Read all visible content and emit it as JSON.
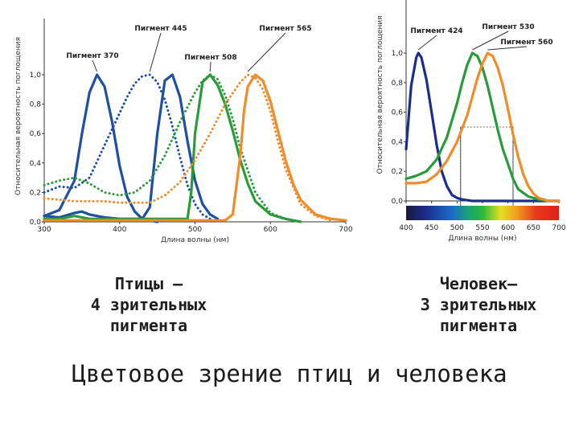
{
  "title": "Цветовое зрение птиц  и человека",
  "caption_left": [
    "Птицы –",
    "4 зрительных",
    "пигмента"
  ],
  "caption_right": [
    "Человек–",
    "3 зрительных",
    "пигмента"
  ],
  "chart_data": [
    {
      "type": "line",
      "ylabel": "Относительная вероятность поглощения",
      "xlabel": "Длина волны (нм)",
      "xlim": [
        300,
        700
      ],
      "ylim": [
        0,
        1.0
      ],
      "xticks": [
        300,
        400,
        500,
        600,
        700
      ],
      "yticks": [
        "0,0",
        "0,2",
        "0,4",
        "0,6",
        "0,8",
        "1,0"
      ],
      "colors": {
        "blue": "#1f4fa3",
        "navy": "#1a2f8a",
        "green": "#2a9a3a",
        "orange": "#f08c2a"
      },
      "series": [
        {
          "name": "Пигмент 370",
          "color": "blue",
          "style": "solid",
          "x": [
            300,
            320,
            340,
            350,
            360,
            370,
            380,
            390,
            400,
            410,
            420,
            430,
            440,
            450
          ],
          "y": [
            0.04,
            0.08,
            0.28,
            0.6,
            0.88,
            1.0,
            0.92,
            0.68,
            0.38,
            0.17,
            0.07,
            0.02,
            0.01,
            0.0
          ]
        },
        {
          "name": "Пигмент 445",
          "color": "blue",
          "style": "dotted",
          "x": [
            300,
            320,
            340,
            360,
            380,
            400,
            410,
            420,
            430,
            440,
            450,
            460,
            470,
            480,
            490,
            500,
            510,
            520
          ],
          "y": [
            0.2,
            0.24,
            0.23,
            0.3,
            0.52,
            0.74,
            0.85,
            0.94,
            0.99,
            1.0,
            0.95,
            0.83,
            0.65,
            0.44,
            0.25,
            0.12,
            0.05,
            0.02
          ]
        },
        {
          "name": "Пигмент 445",
          "color": "blue",
          "style": "solid",
          "x": [
            300,
            320,
            340,
            350,
            360,
            380,
            400,
            420,
            430,
            440,
            450,
            460,
            470,
            480,
            490,
            500,
            510,
            520,
            530
          ],
          "y": [
            0.04,
            0.03,
            0.06,
            0.07,
            0.05,
            0.03,
            0.02,
            0.02,
            0.02,
            0.1,
            0.6,
            0.96,
            1.0,
            0.85,
            0.55,
            0.28,
            0.12,
            0.05,
            0.02
          ]
        },
        {
          "name": "Пигмент 508",
          "color": "green",
          "style": "dotted",
          "x": [
            300,
            320,
            340,
            360,
            380,
            400,
            420,
            440,
            460,
            480,
            500,
            510,
            520,
            530,
            540,
            550,
            560,
            580,
            600,
            620
          ],
          "y": [
            0.25,
            0.28,
            0.3,
            0.26,
            0.2,
            0.18,
            0.2,
            0.28,
            0.45,
            0.68,
            0.88,
            0.96,
            1.0,
            0.97,
            0.86,
            0.7,
            0.5,
            0.2,
            0.06,
            0.02
          ]
        },
        {
          "name": "Пигмент 508",
          "color": "green",
          "style": "solid",
          "x": [
            300,
            320,
            340,
            360,
            380,
            400,
            420,
            440,
            460,
            480,
            490,
            495,
            500,
            510,
            520,
            530,
            540,
            550,
            560,
            570,
            580,
            600,
            620,
            640
          ],
          "y": [
            0.02,
            0.02,
            0.04,
            0.02,
            0.02,
            0.02,
            0.02,
            0.02,
            0.02,
            0.02,
            0.02,
            0.2,
            0.6,
            0.95,
            1.0,
            0.93,
            0.8,
            0.62,
            0.42,
            0.26,
            0.14,
            0.05,
            0.02,
            0.0
          ]
        },
        {
          "name": "Пигмент 565",
          "color": "orange",
          "style": "dotted",
          "x": [
            300,
            340,
            380,
            400,
            420,
            440,
            460,
            480,
            500,
            520,
            540,
            560,
            570,
            580,
            590,
            600,
            610,
            620,
            640,
            660,
            680
          ],
          "y": [
            0.16,
            0.14,
            0.14,
            0.13,
            0.13,
            0.13,
            0.18,
            0.27,
            0.42,
            0.6,
            0.8,
            0.95,
            1.0,
            0.98,
            0.9,
            0.75,
            0.55,
            0.36,
            0.12,
            0.04,
            0.01
          ]
        },
        {
          "name": "Пигмент 565",
          "color": "orange",
          "style": "solid",
          "x": [
            300,
            400,
            500,
            540,
            550,
            560,
            565,
            570,
            580,
            590,
            600,
            610,
            620,
            630,
            640,
            660,
            680,
            700
          ],
          "y": [
            0.01,
            0.01,
            0.01,
            0.01,
            0.05,
            0.45,
            0.75,
            0.92,
            1.0,
            0.96,
            0.82,
            0.62,
            0.42,
            0.26,
            0.15,
            0.05,
            0.02,
            0.01
          ]
        }
      ],
      "labels": [
        "Пигмент 370",
        "Пигмент 445",
        "Пигмент 508",
        "Пигмент 565"
      ]
    },
    {
      "type": "line",
      "ylabel": "Относительная вероятность поглощения",
      "xlabel": "Длина волны (нм)",
      "xlim": [
        400,
        700
      ],
      "ylim": [
        0,
        1.0
      ],
      "xticks": [
        400,
        450,
        500,
        550,
        600,
        650,
        700
      ],
      "yticks": [
        "0,0",
        "0,2",
        "0,4",
        "0,6",
        "0,8",
        "1,0"
      ],
      "spectrum_bar": true,
      "highlight_box": {
        "x": [
          507,
          610
        ],
        "y": [
          0.0,
          0.5
        ]
      },
      "series": [
        {
          "name": "Пигмент 424",
          "color": "navy",
          "style": "solid",
          "x": [
            400,
            410,
            420,
            424,
            430,
            440,
            450,
            460,
            470,
            480,
            490,
            500,
            510,
            520,
            530,
            560,
            600,
            650,
            700
          ],
          "y": [
            0.35,
            0.78,
            0.97,
            1.0,
            0.97,
            0.82,
            0.6,
            0.38,
            0.2,
            0.1,
            0.04,
            0.02,
            0.01,
            0.005,
            0.0,
            0.0,
            0.0,
            0.0,
            0.0
          ]
        },
        {
          "name": "Пигмент 530",
          "color": "green",
          "style": "solid",
          "x": [
            400,
            420,
            440,
            460,
            480,
            500,
            510,
            520,
            530,
            540,
            550,
            560,
            570,
            580,
            590,
            600,
            610,
            620,
            640,
            660,
            680,
            700
          ],
          "y": [
            0.15,
            0.17,
            0.2,
            0.28,
            0.43,
            0.66,
            0.8,
            0.92,
            1.0,
            0.98,
            0.9,
            0.78,
            0.63,
            0.48,
            0.35,
            0.25,
            0.15,
            0.08,
            0.03,
            0.01,
            0.0,
            0.0
          ]
        },
        {
          "name": "Пигмент 560",
          "color": "orange",
          "style": "solid",
          "x": [
            400,
            420,
            440,
            460,
            480,
            500,
            520,
            540,
            550,
            560,
            570,
            580,
            590,
            600,
            610,
            620,
            630,
            640,
            650,
            660,
            680,
            700
          ],
          "y": [
            0.12,
            0.12,
            0.13,
            0.18,
            0.27,
            0.4,
            0.58,
            0.83,
            0.93,
            1.0,
            0.98,
            0.9,
            0.78,
            0.62,
            0.45,
            0.3,
            0.18,
            0.1,
            0.05,
            0.02,
            0.0,
            0.0
          ]
        }
      ],
      "labels": [
        "Пигмент 424",
        "Пигмент 530",
        "Пигмент 560"
      ]
    }
  ]
}
